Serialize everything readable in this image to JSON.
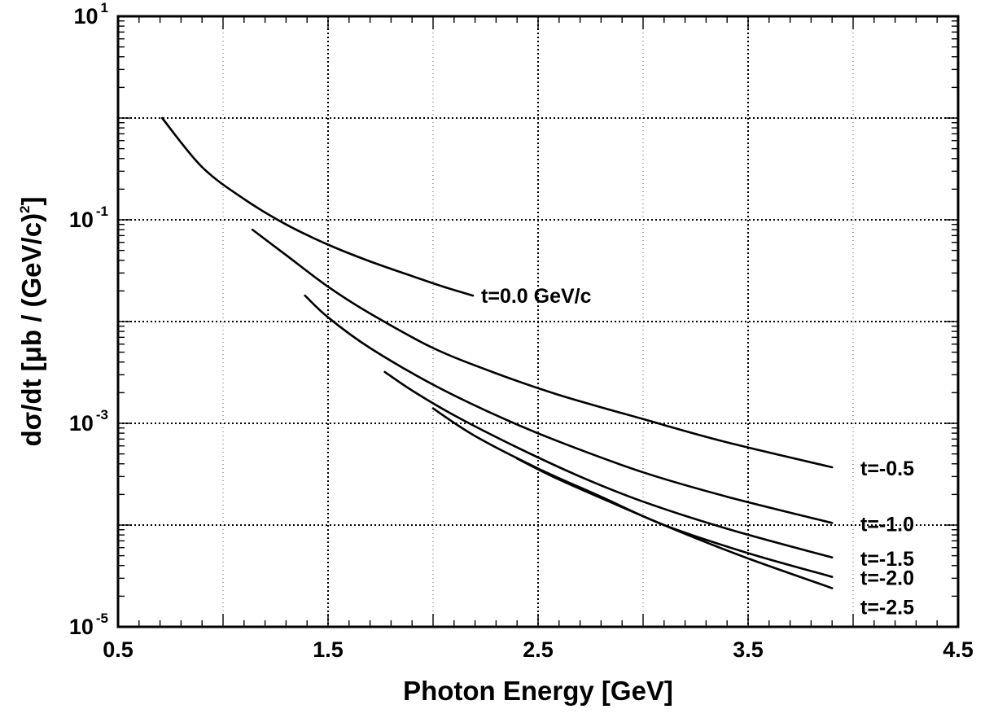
{
  "chart_data": {
    "type": "line",
    "title": "",
    "xlabel": "Photon Energy [GeV]",
    "ylabel": "dσ/dt [μb / (GeV/c)",
    "ylabel_sup": "2",
    "ylabel_end": "]",
    "xlim": [
      0.5,
      4.5
    ],
    "ylim": [
      1e-05,
      10
    ],
    "yscale": "log",
    "grid": true,
    "x_ticks": [
      {
        "value": 0.5,
        "label": "0.5"
      },
      {
        "value": 1.5,
        "label": "1.5"
      },
      {
        "value": 2.5,
        "label": "2.5"
      },
      {
        "value": 3.5,
        "label": "3.5"
      },
      {
        "value": 4.5,
        "label": "4.5"
      }
    ],
    "y_ticks": [
      {
        "value": 10,
        "base": "10",
        "exp": "1"
      },
      {
        "value": 0.1,
        "base": "10",
        "exp": "-1"
      },
      {
        "value": 0.001,
        "base": "10",
        "exp": "-3"
      },
      {
        "value": 1e-05,
        "base": "10",
        "exp": "-5"
      }
    ],
    "series": [
      {
        "name": "t=0.0 GeV/c",
        "x": [
          0.71,
          0.9,
          1.1,
          1.3,
          1.5,
          1.7,
          1.9,
          2.05,
          2.19
        ],
        "y": [
          1.0,
          0.33,
          0.16,
          0.09,
          0.057,
          0.039,
          0.028,
          0.022,
          0.018
        ]
      },
      {
        "name": "t=-0.5",
        "x": [
          1.14,
          1.3,
          1.5,
          1.7,
          2.0,
          2.3,
          2.6,
          3.0,
          3.4,
          3.9
        ],
        "y": [
          0.08,
          0.045,
          0.022,
          0.012,
          0.0055,
          0.0031,
          0.0019,
          0.0011,
          0.00065,
          0.00037
        ]
      },
      {
        "name": "t=-1.0",
        "x": [
          1.39,
          1.5,
          1.7,
          2.0,
          2.3,
          2.6,
          3.0,
          3.4,
          3.9
        ],
        "y": [
          0.018,
          0.011,
          0.0055,
          0.0024,
          0.0012,
          0.00066,
          0.00033,
          0.00019,
          0.000105
        ]
      },
      {
        "name": "t=-1.5",
        "x": [
          1.77,
          1.9,
          2.1,
          2.4,
          2.7,
          3.0,
          3.4,
          3.9
        ],
        "y": [
          0.0032,
          0.0021,
          0.0012,
          0.00058,
          0.0003,
          0.00017,
          9.2e-05,
          4.8e-05
        ]
      },
      {
        "name": "t=-2.0",
        "x": [
          2.0,
          2.2,
          2.5,
          2.8,
          3.1,
          3.5,
          3.9
        ],
        "y": [
          0.0014,
          0.00075,
          0.00036,
          0.00019,
          0.0001,
          5.3e-05,
          3.1e-05
        ]
      },
      {
        "name": "t=-2.5",
        "x": [
          2.4,
          2.6,
          2.9,
          3.2,
          3.5,
          3.9
        ],
        "y": [
          0.00045,
          0.00028,
          0.00015,
          8.2e-05,
          4.7e-05,
          2.4e-05
        ]
      }
    ]
  }
}
